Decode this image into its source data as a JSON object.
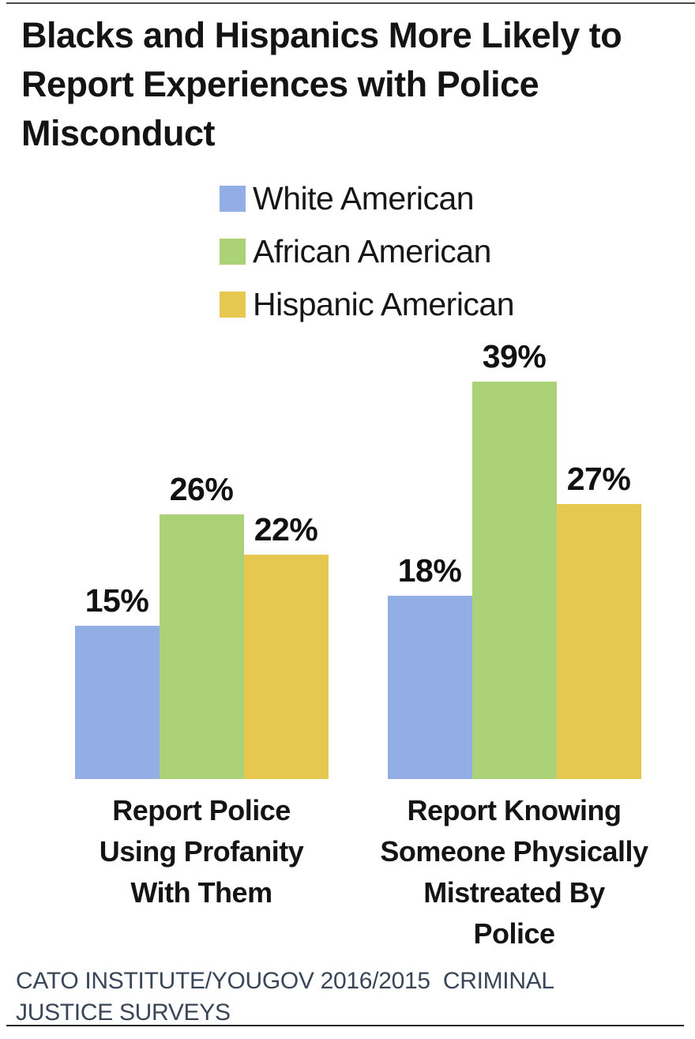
{
  "title": {
    "text": "Blacks and Hispanics More Likely to Report Experiences with Police Misconduct",
    "lines": [
      "Blacks and Hispanics More Likely to",
      "Report Experiences with Police",
      "Misconduct"
    ]
  },
  "source": {
    "text": "CATO INSTITUTE/YOUGOV 2016/2015  CRIMINAL JUSTICE SURVEYS",
    "lines": [
      "CATO INSTITUTE/YOUGOV 2016/2015  CRIMINAL",
      "JUSTICE SURVEYS"
    ],
    "color": "#3A4657"
  },
  "chart_data": {
    "type": "bar",
    "title": "Blacks and Hispanics More Likely to Report Experiences with Police Misconduct",
    "categories": [
      "Report Police Using Profanity With Them",
      "Report Knowing Someone Physically Mistreated By Police"
    ],
    "category_lines": [
      [
        "Report Police",
        "Using Profanity",
        "With Them"
      ],
      [
        "Report Knowing",
        "Someone Physically",
        "Mistreated By",
        "Police"
      ]
    ],
    "series": [
      {
        "name": "White American",
        "color": "#92AEE5",
        "values": [
          15,
          18
        ]
      },
      {
        "name": "African American",
        "color": "#ABD277",
        "values": [
          26,
          39
        ]
      },
      {
        "name": "Hispanic American",
        "color": "#E6C750",
        "values": [
          22,
          27
        ]
      }
    ],
    "value_suffix": "%",
    "data_labels": true,
    "xlabel": "",
    "ylabel": "",
    "ylim": [
      0,
      43
    ],
    "grid": false,
    "legend_position": "top",
    "axis_visible": false
  }
}
